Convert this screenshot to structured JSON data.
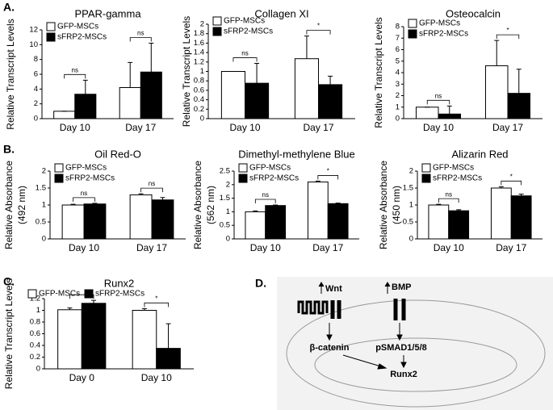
{
  "panel_labels": [
    "A.",
    "B.",
    "C.",
    "D."
  ],
  "diagram": {
    "wnt": "Wnt",
    "bmp": "BMP",
    "beta_catenin": "β-catenin",
    "psmad": "pSMAD1/5/8",
    "runx2": "Runx2"
  },
  "chart_data": [
    {
      "type": "bar",
      "title": "PPAR-gamma",
      "y_label": "Relative Transcript Levels",
      "categories": [
        "Day 10",
        "Day 17"
      ],
      "series": [
        {
          "name": "GFP-MSCs",
          "color": "#ffffff",
          "values": [
            1,
            4.2
          ],
          "errors": [
            0,
            3.4
          ]
        },
        {
          "name": "sFRP2-MSCs",
          "color": "#000000",
          "values": [
            3.3,
            6.3
          ],
          "errors": [
            1.9,
            3.9
          ]
        }
      ],
      "annotations": [
        "ns",
        "ns"
      ],
      "ylim": [
        0,
        12
      ],
      "yticks": [
        0,
        2,
        4,
        6,
        8,
        10,
        12
      ],
      "legend": "top-left"
    },
    {
      "type": "bar",
      "title": "Collagen XI",
      "y_label": "Relative Transcript Levels",
      "categories": [
        "Day 10",
        "Day 17"
      ],
      "series": [
        {
          "name": "GFP-MSCs",
          "color": "#ffffff",
          "values": [
            1,
            1.27
          ],
          "errors": [
            0,
            0.48
          ]
        },
        {
          "name": "sFRP2-MSCs",
          "color": "#000000",
          "values": [
            0.75,
            0.72
          ],
          "errors": [
            0.42,
            0.18
          ]
        }
      ],
      "annotations": [
        "ns",
        "*"
      ],
      "ylim": [
        0,
        2
      ],
      "yticks": [
        0,
        0.2,
        0.4,
        0.6,
        0.8,
        1,
        1.2,
        1.4,
        1.6,
        1.8,
        2
      ],
      "legend": "top-left"
    },
    {
      "type": "bar",
      "title": "Osteocalcin",
      "y_label": "Relative Transcript Levels",
      "categories": [
        "Day 10",
        "Day 17"
      ],
      "series": [
        {
          "name": "GFP-MSCs",
          "color": "#ffffff",
          "values": [
            1,
            4.6
          ],
          "errors": [
            0,
            2.2
          ]
        },
        {
          "name": "sFRP2-MSCs",
          "color": "#000000",
          "values": [
            0.4,
            2.2
          ],
          "errors": [
            0.7,
            2.1
          ]
        }
      ],
      "annotations": [
        "ns",
        "*"
      ],
      "ylim": [
        0,
        8
      ],
      "yticks": [
        0,
        1,
        2,
        3,
        4,
        5,
        6,
        7,
        8
      ],
      "legend": "top-left"
    },
    {
      "type": "bar",
      "title": "Oil Red-O",
      "y_label": [
        "Relative Absorbance",
        "(492 nm)"
      ],
      "categories": [
        "Day 10",
        "Day 17"
      ],
      "series": [
        {
          "name": "GFP-MSCs",
          "color": "#ffffff",
          "values": [
            1,
            1.3
          ],
          "errors": [
            0.02,
            0.03
          ]
        },
        {
          "name": "sFRP2-MSCs",
          "color": "#000000",
          "values": [
            1.03,
            1.15
          ],
          "errors": [
            0.02,
            0.07
          ]
        }
      ],
      "annotations": [
        "ns",
        "ns"
      ],
      "ylim": [
        0,
        2
      ],
      "yticks": [
        0,
        0.5,
        1,
        1.5,
        2
      ],
      "legend": "top-left"
    },
    {
      "type": "bar",
      "title": "Dimethyl-methylene Blue",
      "y_label": [
        "Relative Absorbance",
        "(562 nm)"
      ],
      "categories": [
        "Day 10",
        "Day 17"
      ],
      "series": [
        {
          "name": "GFP-MSCs",
          "color": "#ffffff",
          "values": [
            1,
            2.1
          ],
          "errors": [
            0.03,
            0.03
          ]
        },
        {
          "name": "sFRP2-MSCs",
          "color": "#000000",
          "values": [
            1.23,
            1.3
          ],
          "errors": [
            0.02,
            0.02
          ]
        }
      ],
      "annotations": [
        "ns",
        "*"
      ],
      "ylim": [
        0,
        2.5
      ],
      "yticks": [
        0,
        0.5,
        1,
        1.5,
        2,
        2.5
      ],
      "legend": "top-left"
    },
    {
      "type": "bar",
      "title": "Alizarin Red",
      "y_label": [
        "Relative Absorbance",
        "(450 nm)"
      ],
      "categories": [
        "Day 10",
        "Day 17"
      ],
      "series": [
        {
          "name": "GFP-MSCs",
          "color": "#ffffff",
          "values": [
            1,
            1.5
          ],
          "errors": [
            0.02,
            0.04
          ]
        },
        {
          "name": "sFRP2-MSCs",
          "color": "#000000",
          "values": [
            0.83,
            1.27
          ],
          "errors": [
            0.03,
            0.05
          ]
        }
      ],
      "annotations": [
        "ns",
        "*"
      ],
      "ylim": [
        0,
        2
      ],
      "yticks": [
        0,
        0.5,
        1,
        1.5,
        2
      ],
      "legend": "top-left"
    },
    {
      "type": "bar",
      "title": "Runx2",
      "y_label": "Relative Transcript Levels",
      "categories": [
        "Day 0",
        "Day 10"
      ],
      "series": [
        {
          "name": "GFP-MSCs",
          "color": "#ffffff",
          "values": [
            1.01,
            1.0
          ],
          "errors": [
            0.03,
            0.03
          ]
        },
        {
          "name": "sFRP2-MSCs",
          "color": "#000000",
          "values": [
            1.12,
            0.35
          ],
          "errors": [
            0.05,
            0.42
          ]
        }
      ],
      "annotations": [
        null,
        "*"
      ],
      "ylim": [
        0,
        1.2
      ],
      "yticks": [
        0,
        0.2,
        0.4,
        0.6,
        0.8,
        1,
        1.2
      ],
      "legend": "top"
    }
  ]
}
